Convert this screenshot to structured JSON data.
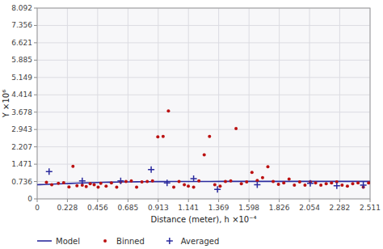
{
  "chart_data": {
    "type": "scatter",
    "xlabel": "Distance (meter), h ×10⁻⁴",
    "ylabel": "Y ×10⁶",
    "xlim": [
      0,
      2.511
    ],
    "ylim": [
      0,
      8.092
    ],
    "xticks": [
      0,
      0.228,
      0.456,
      0.685,
      0.913,
      1.141,
      1.369,
      1.598,
      1.826,
      2.054,
      2.282,
      2.511
    ],
    "yticks": [
      0,
      0.736,
      1.471,
      2.207,
      2.943,
      3.678,
      4.414,
      5.149,
      5.885,
      6.621,
      7.356,
      8.092
    ],
    "grid": true,
    "legend": "bottom",
    "series": [
      {
        "name": "Model",
        "type": "line",
        "color": "#2b2b9e",
        "line_style": "solid",
        "x": [
          0.0,
          0.02,
          0.05,
          0.08,
          0.11,
          0.15,
          0.2,
          0.25,
          0.3,
          0.35,
          0.4,
          0.45,
          0.5,
          0.55,
          0.6,
          0.65,
          0.7,
          0.75,
          0.8,
          0.85,
          0.9,
          0.95,
          1.0,
          1.1,
          1.2,
          1.3,
          1.4,
          1.5,
          1.6,
          1.7,
          1.8,
          1.9,
          2.0,
          2.1,
          2.2,
          2.3,
          2.4,
          2.511
        ],
        "values": [
          0.6,
          0.604,
          0.61,
          0.617,
          0.624,
          0.633,
          0.645,
          0.657,
          0.668,
          0.678,
          0.687,
          0.695,
          0.702,
          0.708,
          0.713,
          0.718,
          0.722,
          0.725,
          0.728,
          0.73,
          0.732,
          0.734,
          0.735,
          0.737,
          0.738,
          0.739,
          0.74,
          0.74,
          0.741,
          0.741,
          0.741,
          0.742,
          0.742,
          0.742,
          0.742,
          0.742,
          0.742,
          0.742
        ]
      },
      {
        "name": "Binned",
        "type": "scatter",
        "color": "#bb1111",
        "marker": "circle",
        "x": [
          0.07,
          0.11,
          0.16,
          0.2,
          0.24,
          0.27,
          0.3,
          0.34,
          0.37,
          0.4,
          0.43,
          0.46,
          0.48,
          0.52,
          0.56,
          0.6,
          0.63,
          0.67,
          0.71,
          0.75,
          0.79,
          0.83,
          0.87,
          0.91,
          0.95,
          0.99,
          1.03,
          1.07,
          1.11,
          1.14,
          1.18,
          1.22,
          1.26,
          1.3,
          1.34,
          1.38,
          1.42,
          1.46,
          1.5,
          1.54,
          1.58,
          1.62,
          1.66,
          1.7,
          1.74,
          1.78,
          1.82,
          1.86,
          1.9,
          1.94,
          1.98,
          2.02,
          2.06,
          2.1,
          2.14,
          2.18,
          2.22,
          2.26,
          2.3,
          2.34,
          2.38,
          2.42,
          2.46,
          2.5
        ],
        "values": [
          0.7,
          0.6,
          0.66,
          0.69,
          0.51,
          1.38,
          0.56,
          0.58,
          0.52,
          0.64,
          0.6,
          0.5,
          0.66,
          0.54,
          0.68,
          0.5,
          0.72,
          0.74,
          0.76,
          0.5,
          0.72,
          0.74,
          0.76,
          2.63,
          2.65,
          3.73,
          0.5,
          0.74,
          0.6,
          0.54,
          0.5,
          0.76,
          1.87,
          2.65,
          0.6,
          0.54,
          0.74,
          0.76,
          2.98,
          0.64,
          0.72,
          1.12,
          0.78,
          0.9,
          1.36,
          0.74,
          0.62,
          0.68,
          0.84,
          0.58,
          0.72,
          0.58,
          0.72,
          0.68,
          0.58,
          0.64,
          0.68,
          0.72,
          0.58,
          0.54,
          0.64,
          0.68,
          0.5,
          0.68
        ]
      },
      {
        "name": "Averaged",
        "type": "scatter",
        "color": "#2b2b9e",
        "marker": "plus",
        "x": [
          0.09,
          0.34,
          0.63,
          0.86,
          0.98,
          1.18,
          1.36,
          1.66,
          2.06,
          2.26,
          2.46
        ],
        "values": [
          1.16,
          0.76,
          0.76,
          1.24,
          0.68,
          0.86,
          0.4,
          0.6,
          0.66,
          0.56,
          0.58
        ]
      }
    ]
  }
}
